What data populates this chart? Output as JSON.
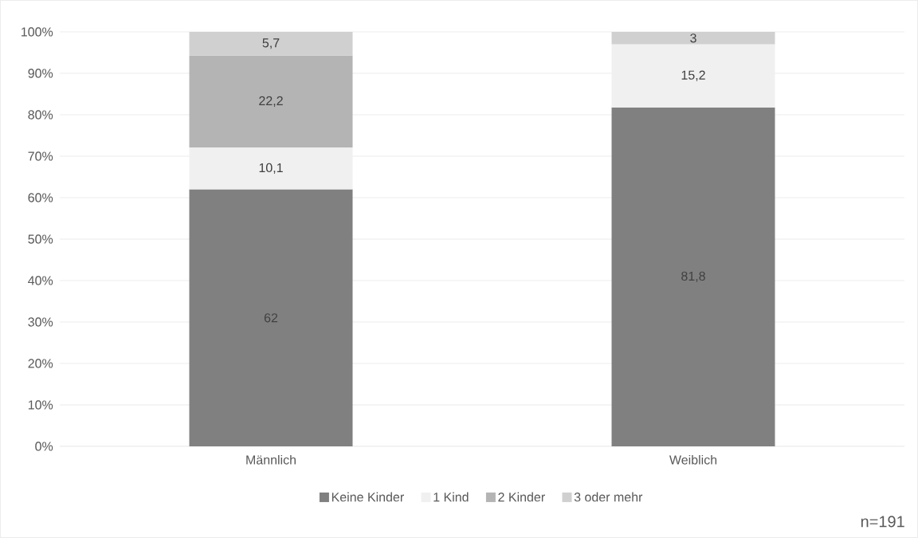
{
  "chart_data": {
    "type": "bar",
    "stacked": true,
    "categories": [
      "Männlich",
      "Weiblich"
    ],
    "series": [
      {
        "name": "Keine Kinder",
        "color": "#808080",
        "values": [
          62,
          81.8
        ],
        "value_labels": [
          "62",
          "81,8"
        ]
      },
      {
        "name": "1 Kind",
        "color": "#f0f0f0",
        "values": [
          10.1,
          15.2
        ],
        "value_labels": [
          "10,1",
          "15,2"
        ]
      },
      {
        "name": "2 Kinder",
        "color": "#b4b4b4",
        "values": [
          22.2,
          null
        ],
        "value_labels": [
          "22,2",
          null
        ]
      },
      {
        "name": "3 oder mehr",
        "color": "#d0d0d0",
        "values": [
          5.7,
          3
        ],
        "value_labels": [
          "5,7",
          "3"
        ]
      }
    ],
    "ylim": [
      0,
      100
    ],
    "yticks": [
      {
        "value": 0,
        "label": "0%"
      },
      {
        "value": 10,
        "label": "10%"
      },
      {
        "value": 20,
        "label": "20%"
      },
      {
        "value": 30,
        "label": "30%"
      },
      {
        "value": 40,
        "label": "40%"
      },
      {
        "value": 50,
        "label": "50%"
      },
      {
        "value": 60,
        "label": "60%"
      },
      {
        "value": 70,
        "label": "70%"
      },
      {
        "value": 80,
        "label": "80%"
      },
      {
        "value": 90,
        "label": "90%"
      },
      {
        "value": 100,
        "label": "100%"
      }
    ],
    "grid": "y",
    "legend": "bottom",
    "annotations": [
      "n=191"
    ]
  }
}
